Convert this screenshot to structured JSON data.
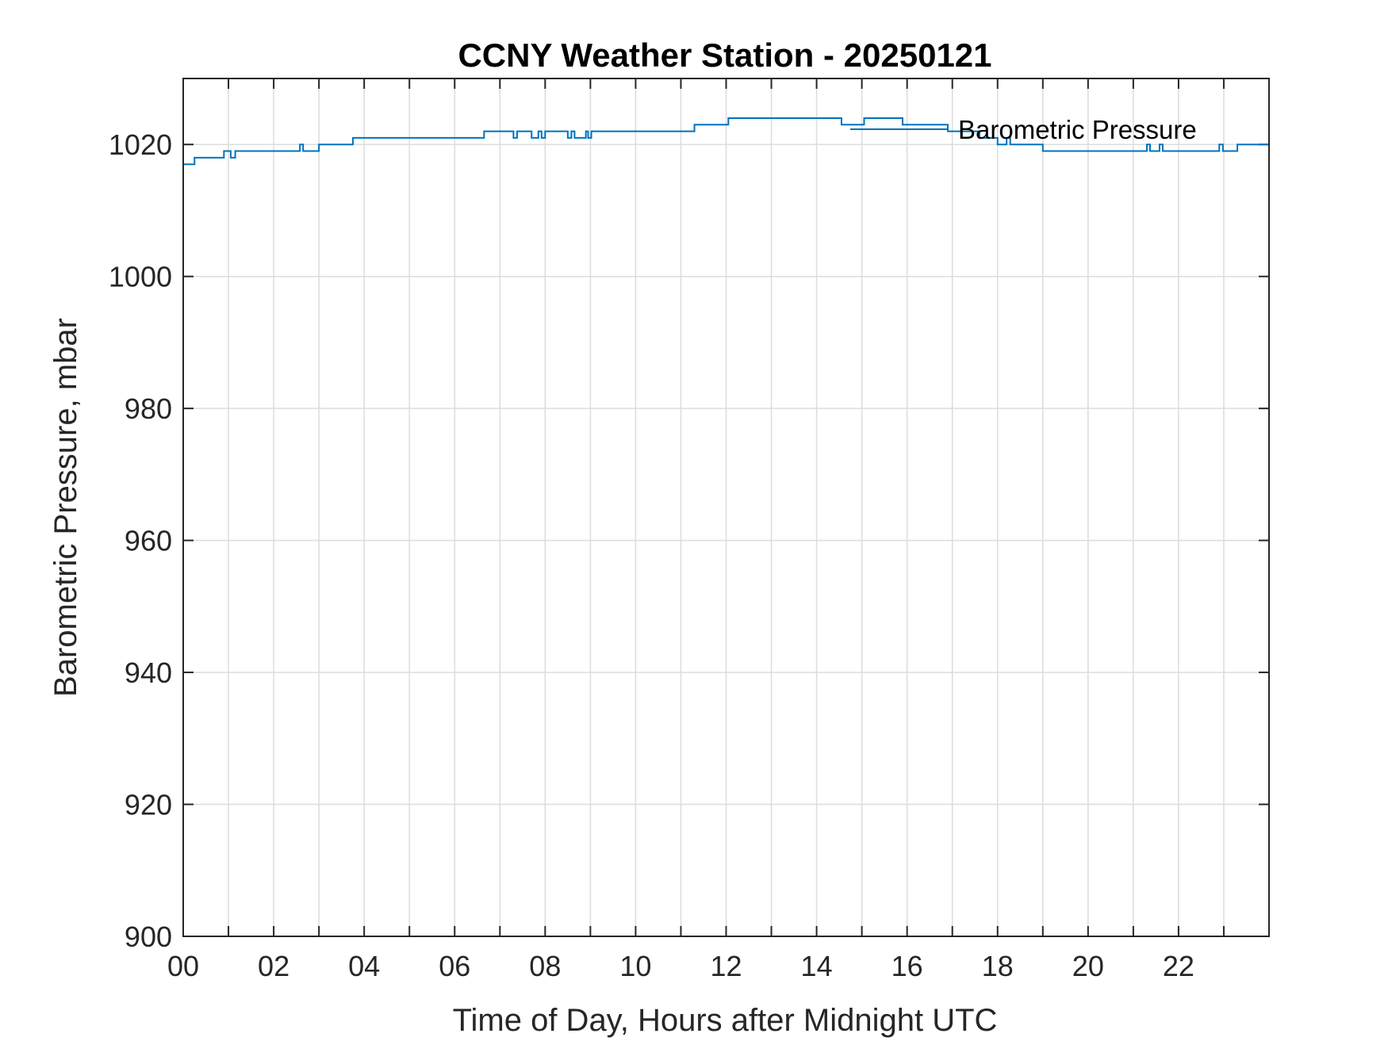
{
  "chart_data": {
    "type": "line",
    "title": "CCNY Weather Station - 20250121",
    "xlabel": "Time of Day, Hours after Midnight UTC",
    "ylabel": "Barometric Pressure, mbar",
    "xlim": [
      0,
      24
    ],
    "ylim": [
      900,
      1030
    ],
    "xticks": [
      0,
      2,
      4,
      6,
      8,
      10,
      12,
      14,
      16,
      18,
      20,
      22
    ],
    "xtick_labels": [
      "00",
      "02",
      "04",
      "06",
      "08",
      "10",
      "12",
      "14",
      "16",
      "18",
      "20",
      "22"
    ],
    "yticks": [
      900,
      920,
      940,
      960,
      980,
      1000,
      1020
    ],
    "yminor_grid_step": 1,
    "grid": true,
    "step": true,
    "legend": {
      "position": "top-right",
      "boxed": false
    },
    "series": [
      {
        "name": "Barometric Pressure",
        "color": "#0072BD",
        "points": [
          [
            0.0,
            1017
          ],
          [
            0.25,
            1018
          ],
          [
            0.9,
            1019
          ],
          [
            1.05,
            1018
          ],
          [
            1.15,
            1019
          ],
          [
            2.58,
            1020
          ],
          [
            2.65,
            1019
          ],
          [
            3.0,
            1020
          ],
          [
            3.75,
            1021
          ],
          [
            6.65,
            1022
          ],
          [
            7.3,
            1021
          ],
          [
            7.38,
            1022
          ],
          [
            7.7,
            1021
          ],
          [
            7.85,
            1022
          ],
          [
            7.92,
            1021
          ],
          [
            8.0,
            1022
          ],
          [
            8.5,
            1021
          ],
          [
            8.58,
            1022
          ],
          [
            8.65,
            1021
          ],
          [
            8.9,
            1022
          ],
          [
            8.95,
            1021
          ],
          [
            9.02,
            1022
          ],
          [
            11.3,
            1023
          ],
          [
            12.05,
            1024
          ],
          [
            14.55,
            1023
          ],
          [
            15.05,
            1024
          ],
          [
            15.9,
            1023
          ],
          [
            16.9,
            1022
          ],
          [
            17.6,
            1021
          ],
          [
            18.0,
            1020
          ],
          [
            18.2,
            1021
          ],
          [
            18.28,
            1020
          ],
          [
            19.0,
            1019
          ],
          [
            21.3,
            1020
          ],
          [
            21.37,
            1019
          ],
          [
            21.58,
            1020
          ],
          [
            21.65,
            1019
          ],
          [
            22.9,
            1020
          ],
          [
            22.98,
            1019
          ],
          [
            23.3,
            1020
          ],
          [
            24.0,
            1020
          ]
        ]
      }
    ]
  }
}
